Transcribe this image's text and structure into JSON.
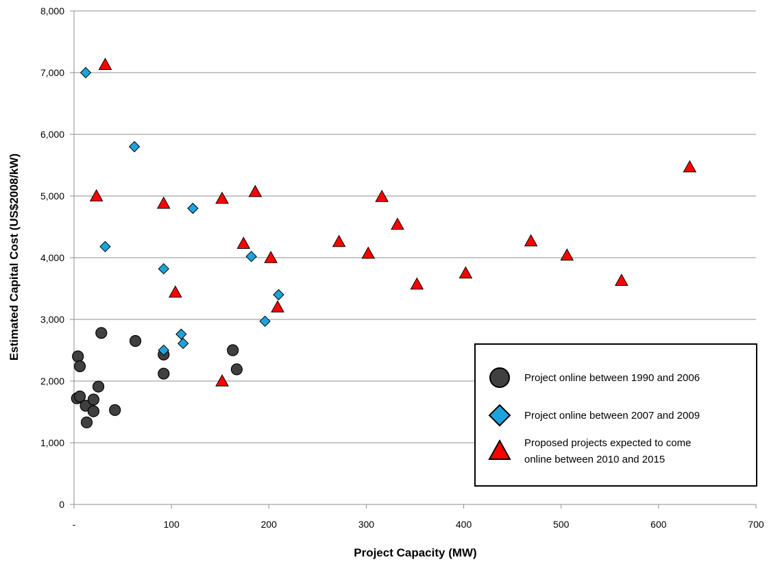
{
  "chart_data": {
    "type": "scatter",
    "xlabel": "Project Capacity (MW)",
    "ylabel": "Estimated Capital Cost (US$2008/kW)",
    "xlim": [
      0,
      700
    ],
    "ylim": [
      0,
      8000
    ],
    "x_ticks": [
      {
        "value": 0,
        "label": "-"
      },
      {
        "value": 100,
        "label": "100"
      },
      {
        "value": 200,
        "label": "200"
      },
      {
        "value": 300,
        "label": "300"
      },
      {
        "value": 400,
        "label": "400"
      },
      {
        "value": 500,
        "label": "500"
      },
      {
        "value": 600,
        "label": "600"
      },
      {
        "value": 700,
        "label": "700"
      }
    ],
    "y_ticks": [
      {
        "value": 0,
        "label": "0"
      },
      {
        "value": 1000,
        "label": "1,000"
      },
      {
        "value": 2000,
        "label": "2,000"
      },
      {
        "value": 3000,
        "label": "3,000"
      },
      {
        "value": 4000,
        "label": "4,000"
      },
      {
        "value": 5000,
        "label": "5,000"
      },
      {
        "value": 6000,
        "label": "6,000"
      },
      {
        "value": 7000,
        "label": "7,000"
      },
      {
        "value": 8000,
        "label": "8,000"
      }
    ],
    "grid": "horizontal",
    "legend_position": "bottom-right",
    "series": [
      {
        "name": "Project online between 1990 and 2006",
        "marker": "circle",
        "color": "#404040",
        "points": [
          {
            "x": 4,
            "y": 2400
          },
          {
            "x": 6,
            "y": 2240
          },
          {
            "x": 3,
            "y": 1720
          },
          {
            "x": 6,
            "y": 1750
          },
          {
            "x": 12,
            "y": 1600
          },
          {
            "x": 13,
            "y": 1330
          },
          {
            "x": 20,
            "y": 1700
          },
          {
            "x": 20,
            "y": 1510
          },
          {
            "x": 25,
            "y": 1910
          },
          {
            "x": 28,
            "y": 2780
          },
          {
            "x": 42,
            "y": 1530
          },
          {
            "x": 63,
            "y": 2650
          },
          {
            "x": 92,
            "y": 2430
          },
          {
            "x": 92,
            "y": 2120
          },
          {
            "x": 163,
            "y": 2500
          },
          {
            "x": 167,
            "y": 2190
          }
        ]
      },
      {
        "name": "Project online between 2007 and 2009",
        "marker": "diamond",
        "color": "#1ca3dc",
        "points": [
          {
            "x": 12,
            "y": 7000
          },
          {
            "x": 32,
            "y": 4180
          },
          {
            "x": 62,
            "y": 5800
          },
          {
            "x": 92,
            "y": 3820
          },
          {
            "x": 92,
            "y": 2500
          },
          {
            "x": 110,
            "y": 2760
          },
          {
            "x": 112,
            "y": 2610
          },
          {
            "x": 122,
            "y": 4800
          },
          {
            "x": 182,
            "y": 4020
          },
          {
            "x": 196,
            "y": 2970
          },
          {
            "x": 210,
            "y": 3400
          }
        ]
      },
      {
        "name": "Proposed projects expected to come online between 2010 and 2015",
        "marker": "triangle",
        "color": "#ff0000",
        "points": [
          {
            "x": 32,
            "y": 7130
          },
          {
            "x": 23,
            "y": 5000
          },
          {
            "x": 92,
            "y": 4880
          },
          {
            "x": 104,
            "y": 3440
          },
          {
            "x": 152,
            "y": 4960
          },
          {
            "x": 152,
            "y": 2000
          },
          {
            "x": 174,
            "y": 4230
          },
          {
            "x": 186,
            "y": 5070
          },
          {
            "x": 202,
            "y": 4000
          },
          {
            "x": 209,
            "y": 3200
          },
          {
            "x": 272,
            "y": 4260
          },
          {
            "x": 302,
            "y": 4070
          },
          {
            "x": 316,
            "y": 4990
          },
          {
            "x": 332,
            "y": 4540
          },
          {
            "x": 352,
            "y": 3570
          },
          {
            "x": 402,
            "y": 3750
          },
          {
            "x": 469,
            "y": 4270
          },
          {
            "x": 506,
            "y": 4040
          },
          {
            "x": 562,
            "y": 3630
          },
          {
            "x": 632,
            "y": 5470
          }
        ]
      }
    ]
  }
}
